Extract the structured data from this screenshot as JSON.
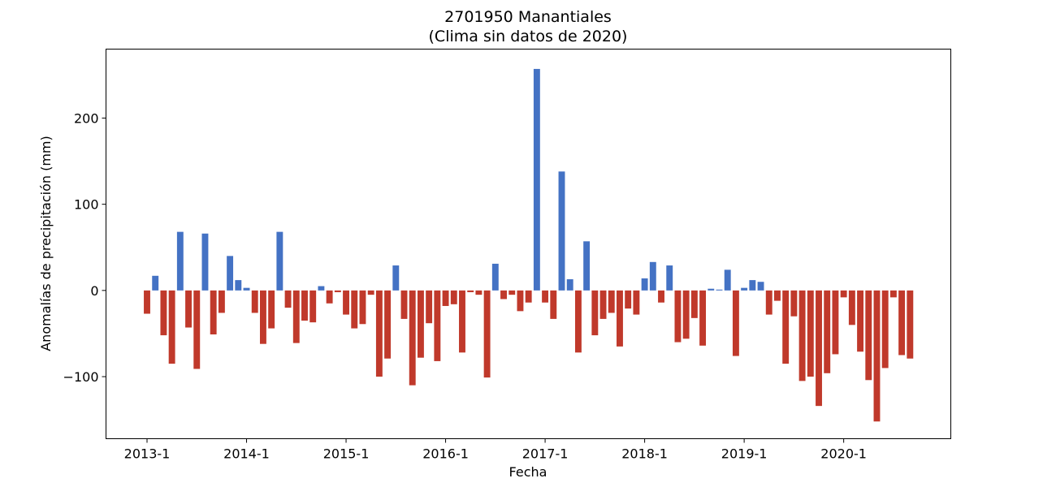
{
  "chart_data": {
    "type": "bar",
    "title": "2701950 Manantiales",
    "subtitle": "(Clima sin datos de 2020)",
    "xlabel": "Fecha",
    "ylabel": "Anomalías de precipitación (mm)",
    "x_start": "2013-1",
    "x_ticks": [
      "2013-1",
      "2014-1",
      "2015-1",
      "2016-1",
      "2017-1",
      "2018-1",
      "2019-1",
      "2020-1"
    ],
    "y_ticks": [
      -100,
      0,
      100,
      200
    ],
    "ylim": [
      -172,
      280
    ],
    "grid": false,
    "colors": {
      "positive": "#4472c4",
      "negative": "#c0392b"
    },
    "values": [
      -27,
      17,
      -52,
      -85,
      68,
      -43,
      -91,
      66,
      -51,
      -26,
      40,
      12,
      3,
      -26,
      -62,
      -44,
      68,
      -20,
      -61,
      -35,
      -37,
      5,
      -15,
      -2,
      -28,
      -44,
      -39,
      -5,
      -100,
      -79,
      29,
      -33,
      -110,
      -78,
      -38,
      -82,
      -18,
      -16,
      -72,
      -2,
      -5,
      -101,
      31,
      -10,
      -5,
      -24,
      -14,
      257,
      -14,
      -33,
      138,
      13,
      -72,
      57,
      -52,
      -33,
      -26,
      -65,
      -21,
      -28,
      14,
      33,
      -14,
      29,
      -60,
      -56,
      -32,
      -64,
      2,
      1,
      24,
      -76,
      3,
      12,
      10,
      -28,
      -12,
      -85,
      -30,
      -105,
      -100,
      -134,
      -96,
      -74,
      -8,
      -40,
      -71,
      -104,
      -152,
      -90,
      -8,
      -75,
      -79
    ]
  }
}
